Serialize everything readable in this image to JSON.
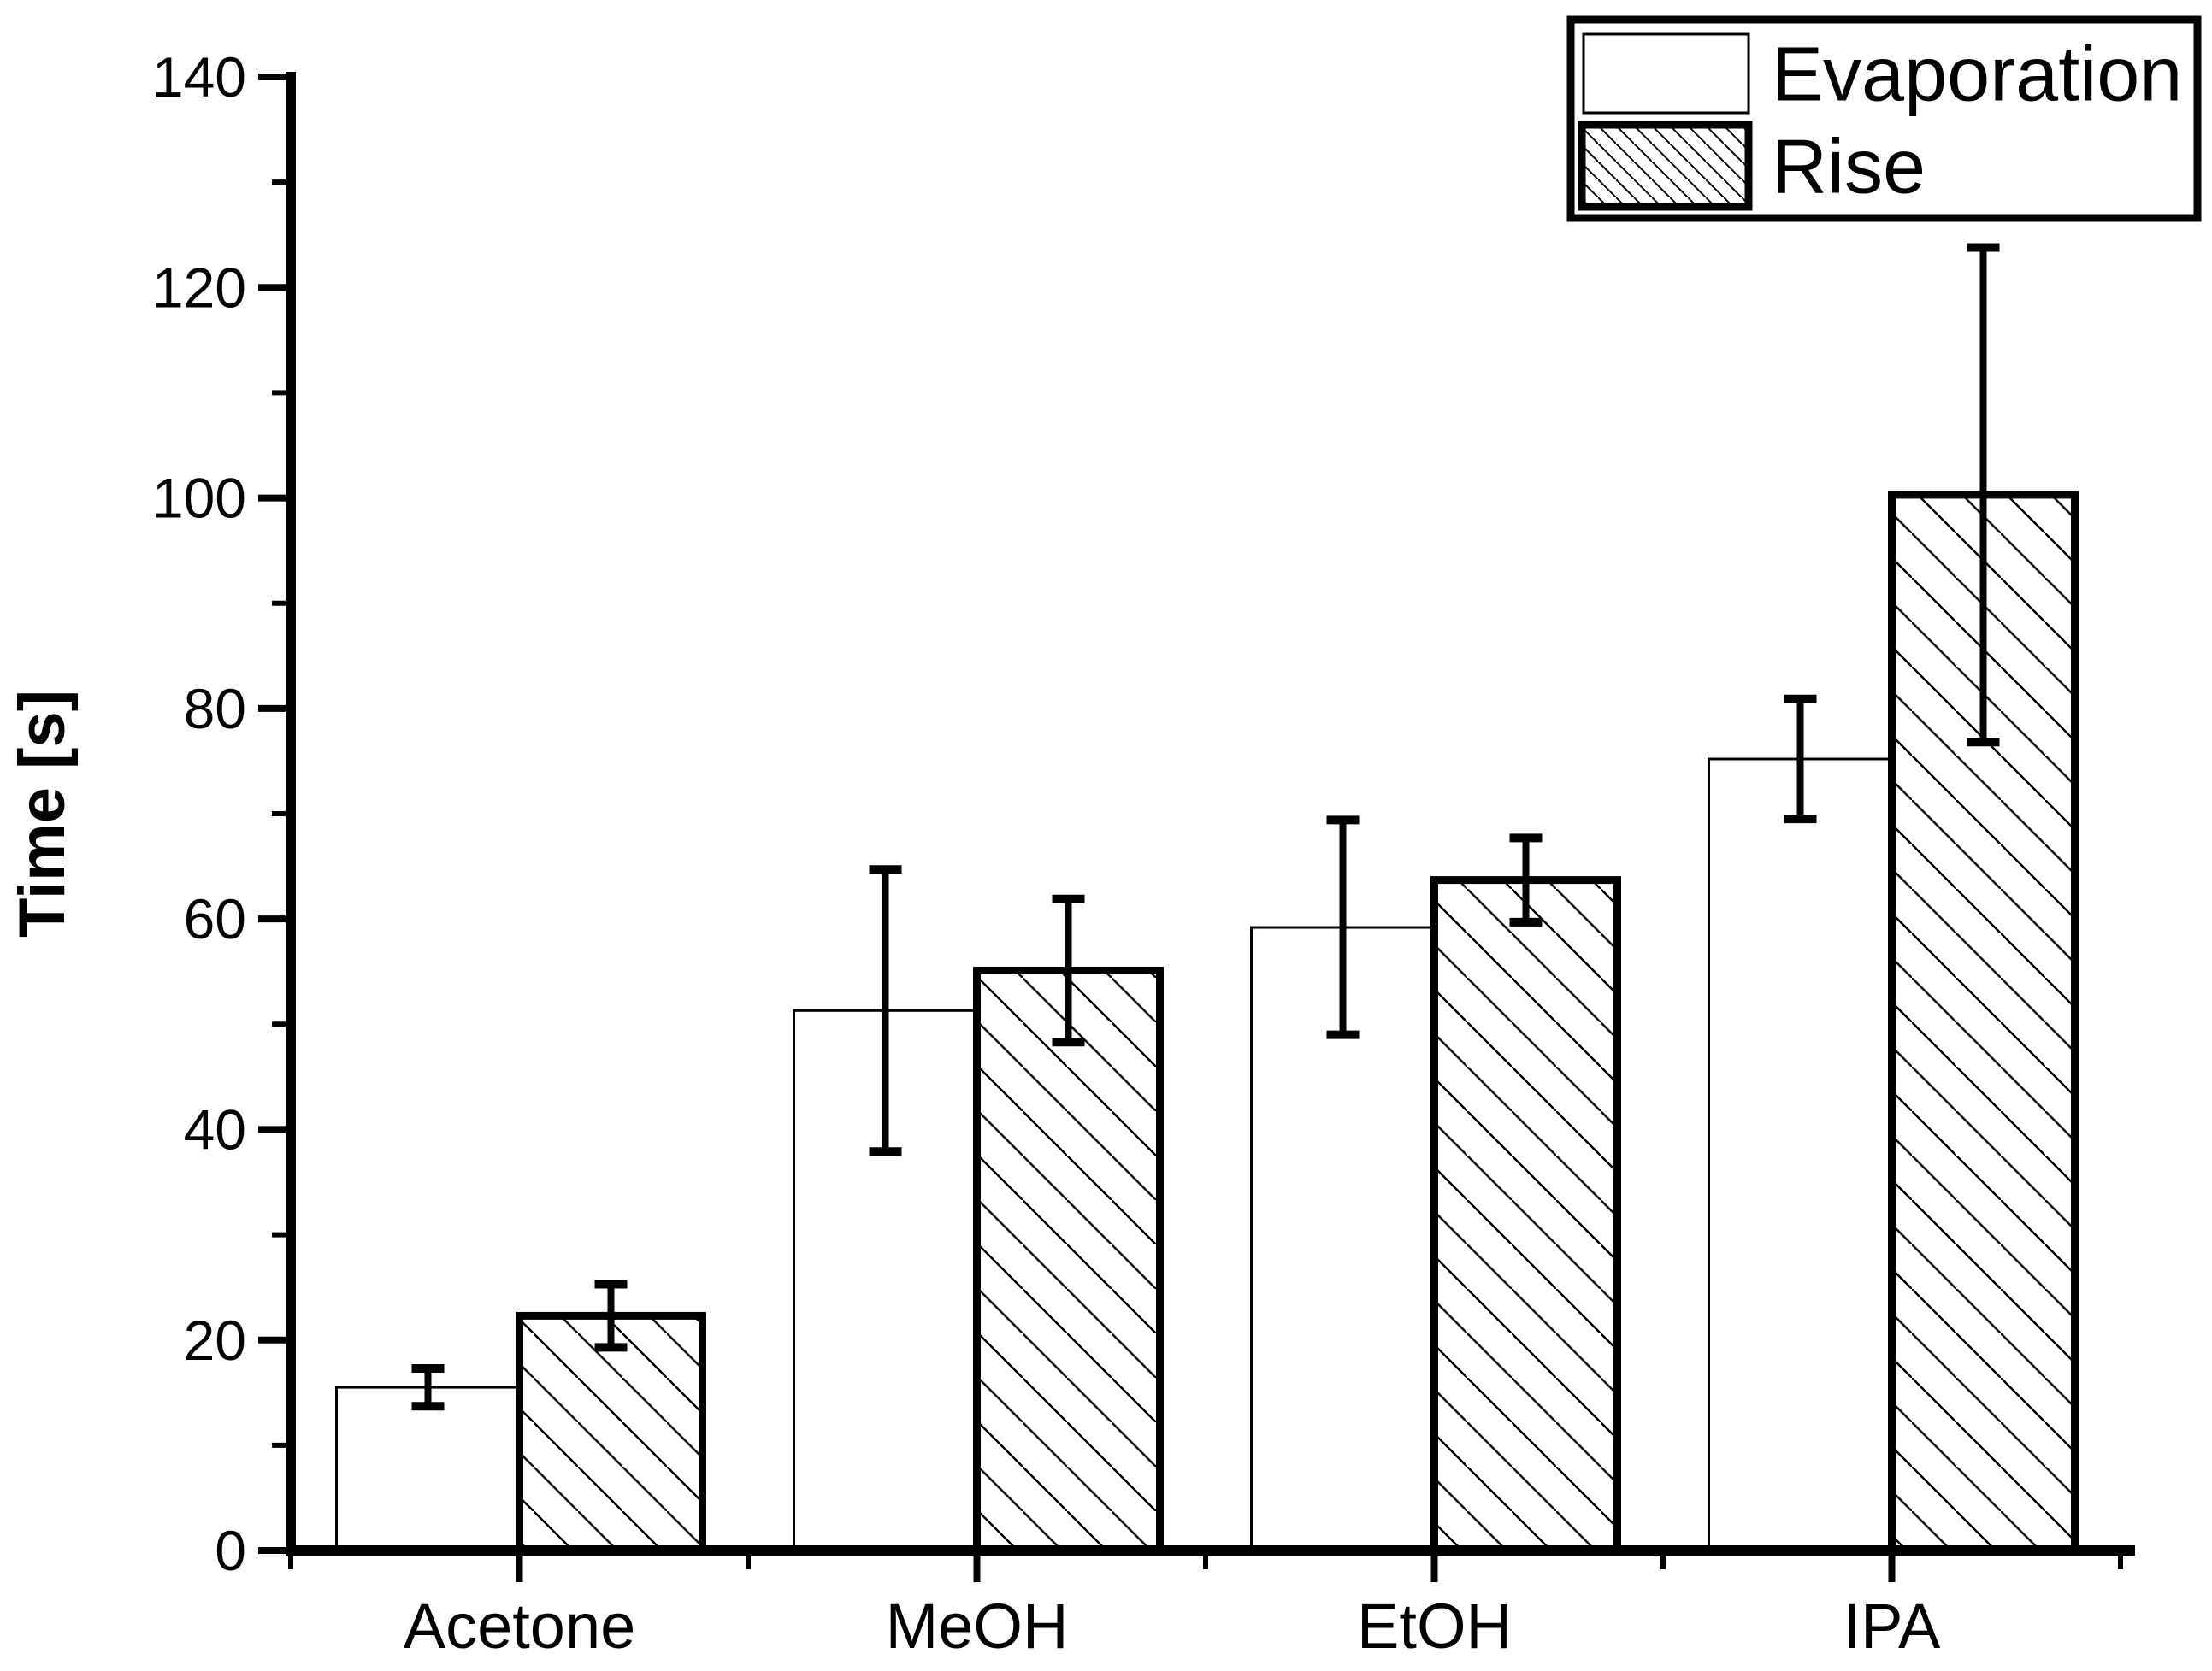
{
  "figure": {
    "ylabel": "Time [s]",
    "background_color": "#ffffff",
    "ink_color": "#000000"
  },
  "legend": {
    "position": "top-right",
    "items": [
      {
        "label": "Evaporation",
        "swatch": "white-outline"
      },
      {
        "label": "Rise",
        "swatch": "diagonal-hatch"
      }
    ]
  },
  "chart_data": {
    "type": "bar",
    "title": "",
    "xlabel": "",
    "ylabel": "Time [s]",
    "categories": [
      "Acetone",
      "MeOH",
      "EtOH",
      "IPA"
    ],
    "series": [
      {
        "name": "Evaporation",
        "style": "white-outline",
        "values": [
          15.5,
          51.3,
          59.2,
          75.2
        ],
        "errors": [
          1.8,
          13.4,
          10.2,
          5.7
        ]
      },
      {
        "name": "Rise",
        "style": "diagonal-hatch",
        "values": [
          22.3,
          55.1,
          63.7,
          100.3
        ],
        "errors": [
          3.0,
          6.8,
          4.0,
          23.5
        ]
      }
    ],
    "ylim": [
      0,
      140
    ],
    "ytick_major_step": 20,
    "ytick_minor_step": 10,
    "ytick_labels": [
      "0",
      "20",
      "40",
      "60",
      "80",
      "100",
      "120",
      "140"
    ],
    "error_bars": true,
    "grid": false,
    "legend_position": "top-right"
  }
}
